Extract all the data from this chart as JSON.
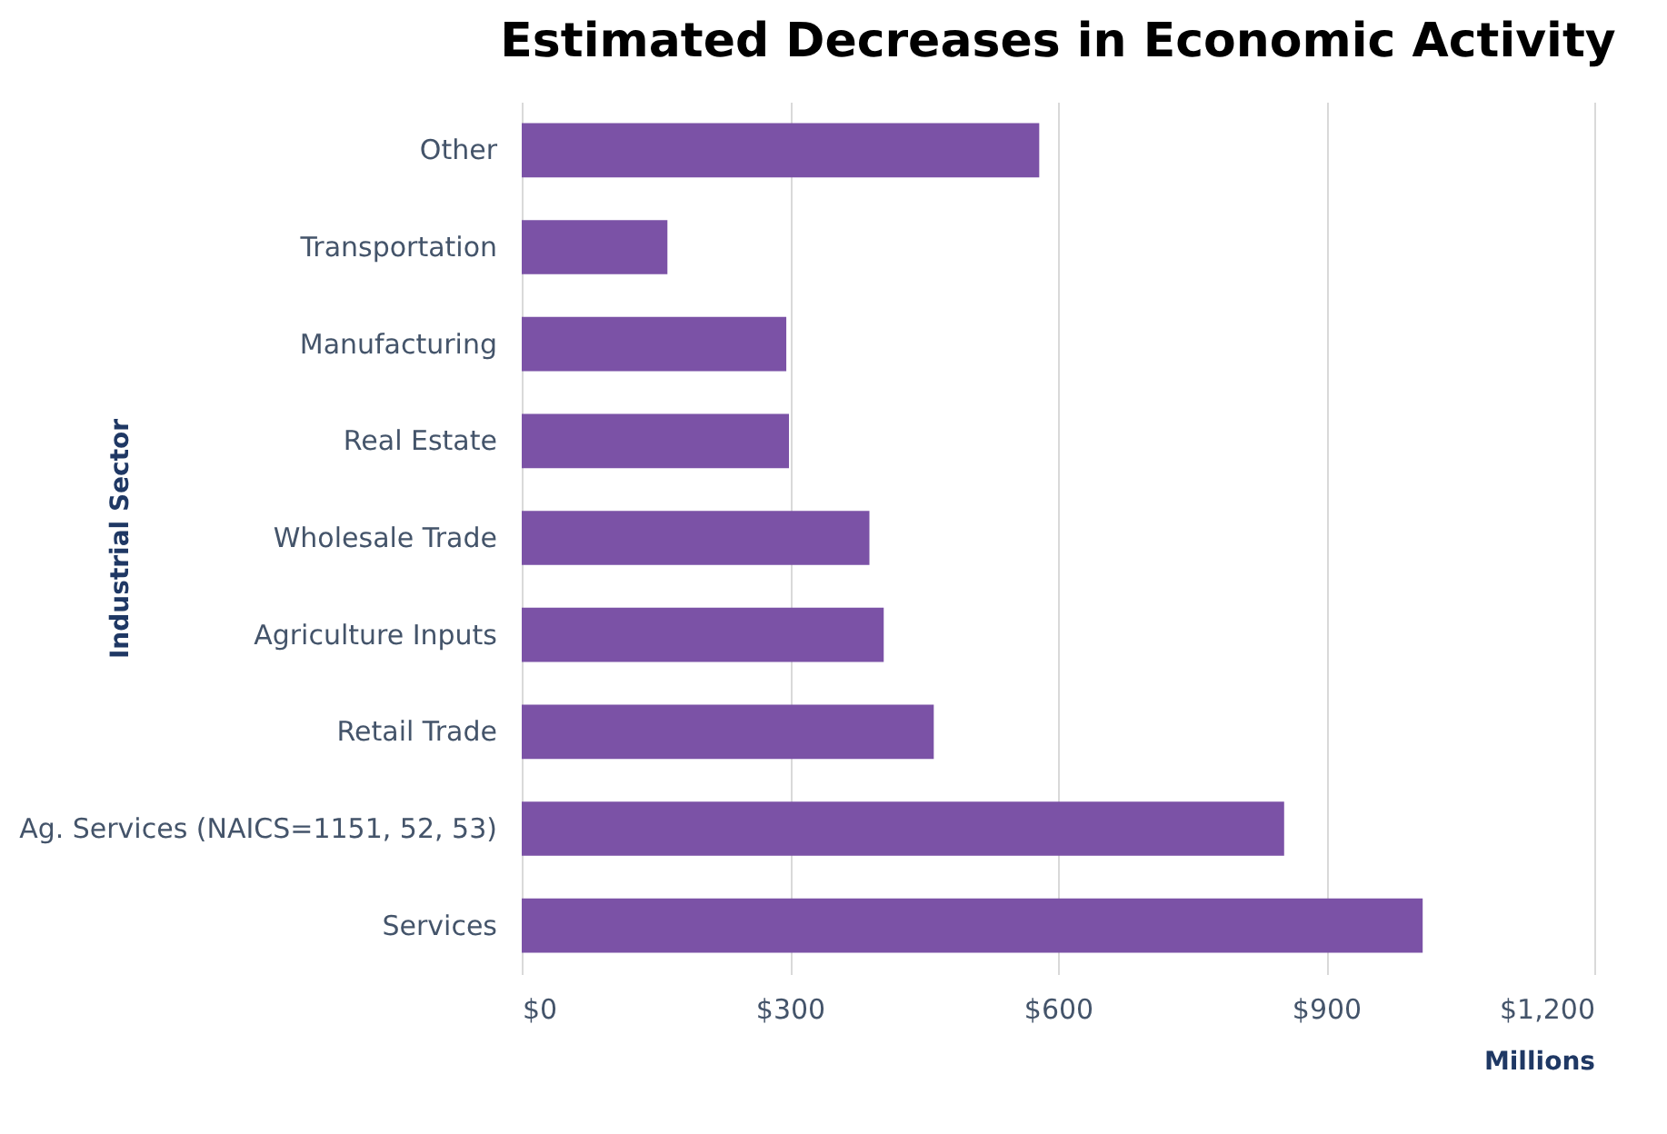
{
  "chart_data": {
    "type": "bar",
    "orientation": "horizontal",
    "title": "Estimated Decreases in Economic Activity",
    "xlabel": "Millions",
    "ylabel": "Industrial Sector",
    "categories": [
      "Other",
      "Transportation",
      "Manufacturing",
      "Real Estate",
      "Wholesale Trade",
      "Agriculture Inputs",
      "Retail Trade",
      "Ag. Services (NAICS=1151, 52, 53)",
      "Services"
    ],
    "values": [
      579,
      163,
      296,
      299,
      389,
      405,
      461,
      853,
      1008
    ],
    "color": "#7b52a6",
    "xlim": [
      0,
      1200
    ],
    "xticks": [
      {
        "value": 0,
        "label": "$0"
      },
      {
        "value": 300,
        "label": "$300"
      },
      {
        "value": 600,
        "label": "$600"
      },
      {
        "value": 900,
        "label": "$900"
      },
      {
        "value": 1200,
        "label": "$1,200"
      }
    ],
    "grid": "x"
  }
}
